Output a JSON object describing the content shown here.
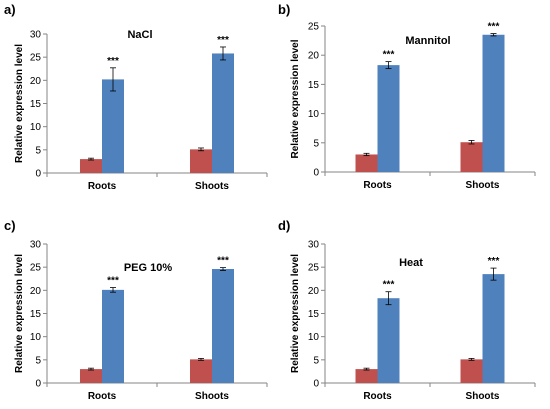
{
  "chart_data": [
    {
      "panel": "a)",
      "type": "bar",
      "title": "NaCl",
      "ylabel": "Relative expression level",
      "xlabel": "",
      "categories": [
        "Roots",
        "Shoots"
      ],
      "ylim": [
        0,
        30
      ],
      "yticks": [
        0,
        5,
        10,
        15,
        20,
        25,
        30
      ],
      "grid": false,
      "series_colors": [
        "#C0504D",
        "#4F81BD"
      ],
      "series": [
        {
          "values": [
            3.0,
            5.1
          ],
          "errors": [
            0.2,
            0.3
          ]
        },
        {
          "values": [
            20.2,
            25.8
          ],
          "errors": [
            2.5,
            1.4
          ]
        }
      ],
      "annotations": [
        "***",
        "***"
      ]
    },
    {
      "panel": "b)",
      "type": "bar",
      "title": "Mannitol",
      "ylabel": "Relative expression level",
      "xlabel": "",
      "categories": [
        "Roots",
        "Shoots"
      ],
      "ylim": [
        0,
        25
      ],
      "yticks": [
        0,
        5,
        10,
        15,
        20,
        25
      ],
      "grid": false,
      "series_colors": [
        "#C0504D",
        "#4F81BD"
      ],
      "series": [
        {
          "values": [
            3.0,
            5.1
          ],
          "errors": [
            0.2,
            0.3
          ]
        },
        {
          "values": [
            18.3,
            23.5
          ],
          "errors": [
            0.6,
            0.2
          ]
        }
      ],
      "annotations": [
        "***",
        "***"
      ]
    },
    {
      "panel": "c)",
      "type": "bar",
      "title": "PEG 10%",
      "ylabel": "Relative expression level",
      "xlabel": "",
      "categories": [
        "Roots",
        "Shoots"
      ],
      "ylim": [
        0,
        30
      ],
      "yticks": [
        0,
        5,
        10,
        15,
        20,
        25,
        30
      ],
      "grid": false,
      "series_colors": [
        "#C0504D",
        "#4F81BD"
      ],
      "series": [
        {
          "values": [
            3.0,
            5.1
          ],
          "errors": [
            0.2,
            0.2
          ]
        },
        {
          "values": [
            20.1,
            24.6
          ],
          "errors": [
            0.5,
            0.3
          ]
        }
      ],
      "annotations": [
        "***",
        "***"
      ]
    },
    {
      "panel": "d)",
      "type": "bar",
      "title": "Heat",
      "ylabel": "Relative expression level",
      "xlabel": "",
      "categories": [
        "Roots",
        "Shoots"
      ],
      "ylim": [
        0,
        30
      ],
      "yticks": [
        0,
        5,
        10,
        15,
        20,
        25,
        30
      ],
      "grid": false,
      "series_colors": [
        "#C0504D",
        "#4F81BD"
      ],
      "series": [
        {
          "values": [
            3.0,
            5.1
          ],
          "errors": [
            0.2,
            0.2
          ]
        },
        {
          "values": [
            18.3,
            23.5
          ],
          "errors": [
            1.4,
            1.3
          ]
        }
      ],
      "annotations": [
        "***",
        "***"
      ]
    }
  ]
}
